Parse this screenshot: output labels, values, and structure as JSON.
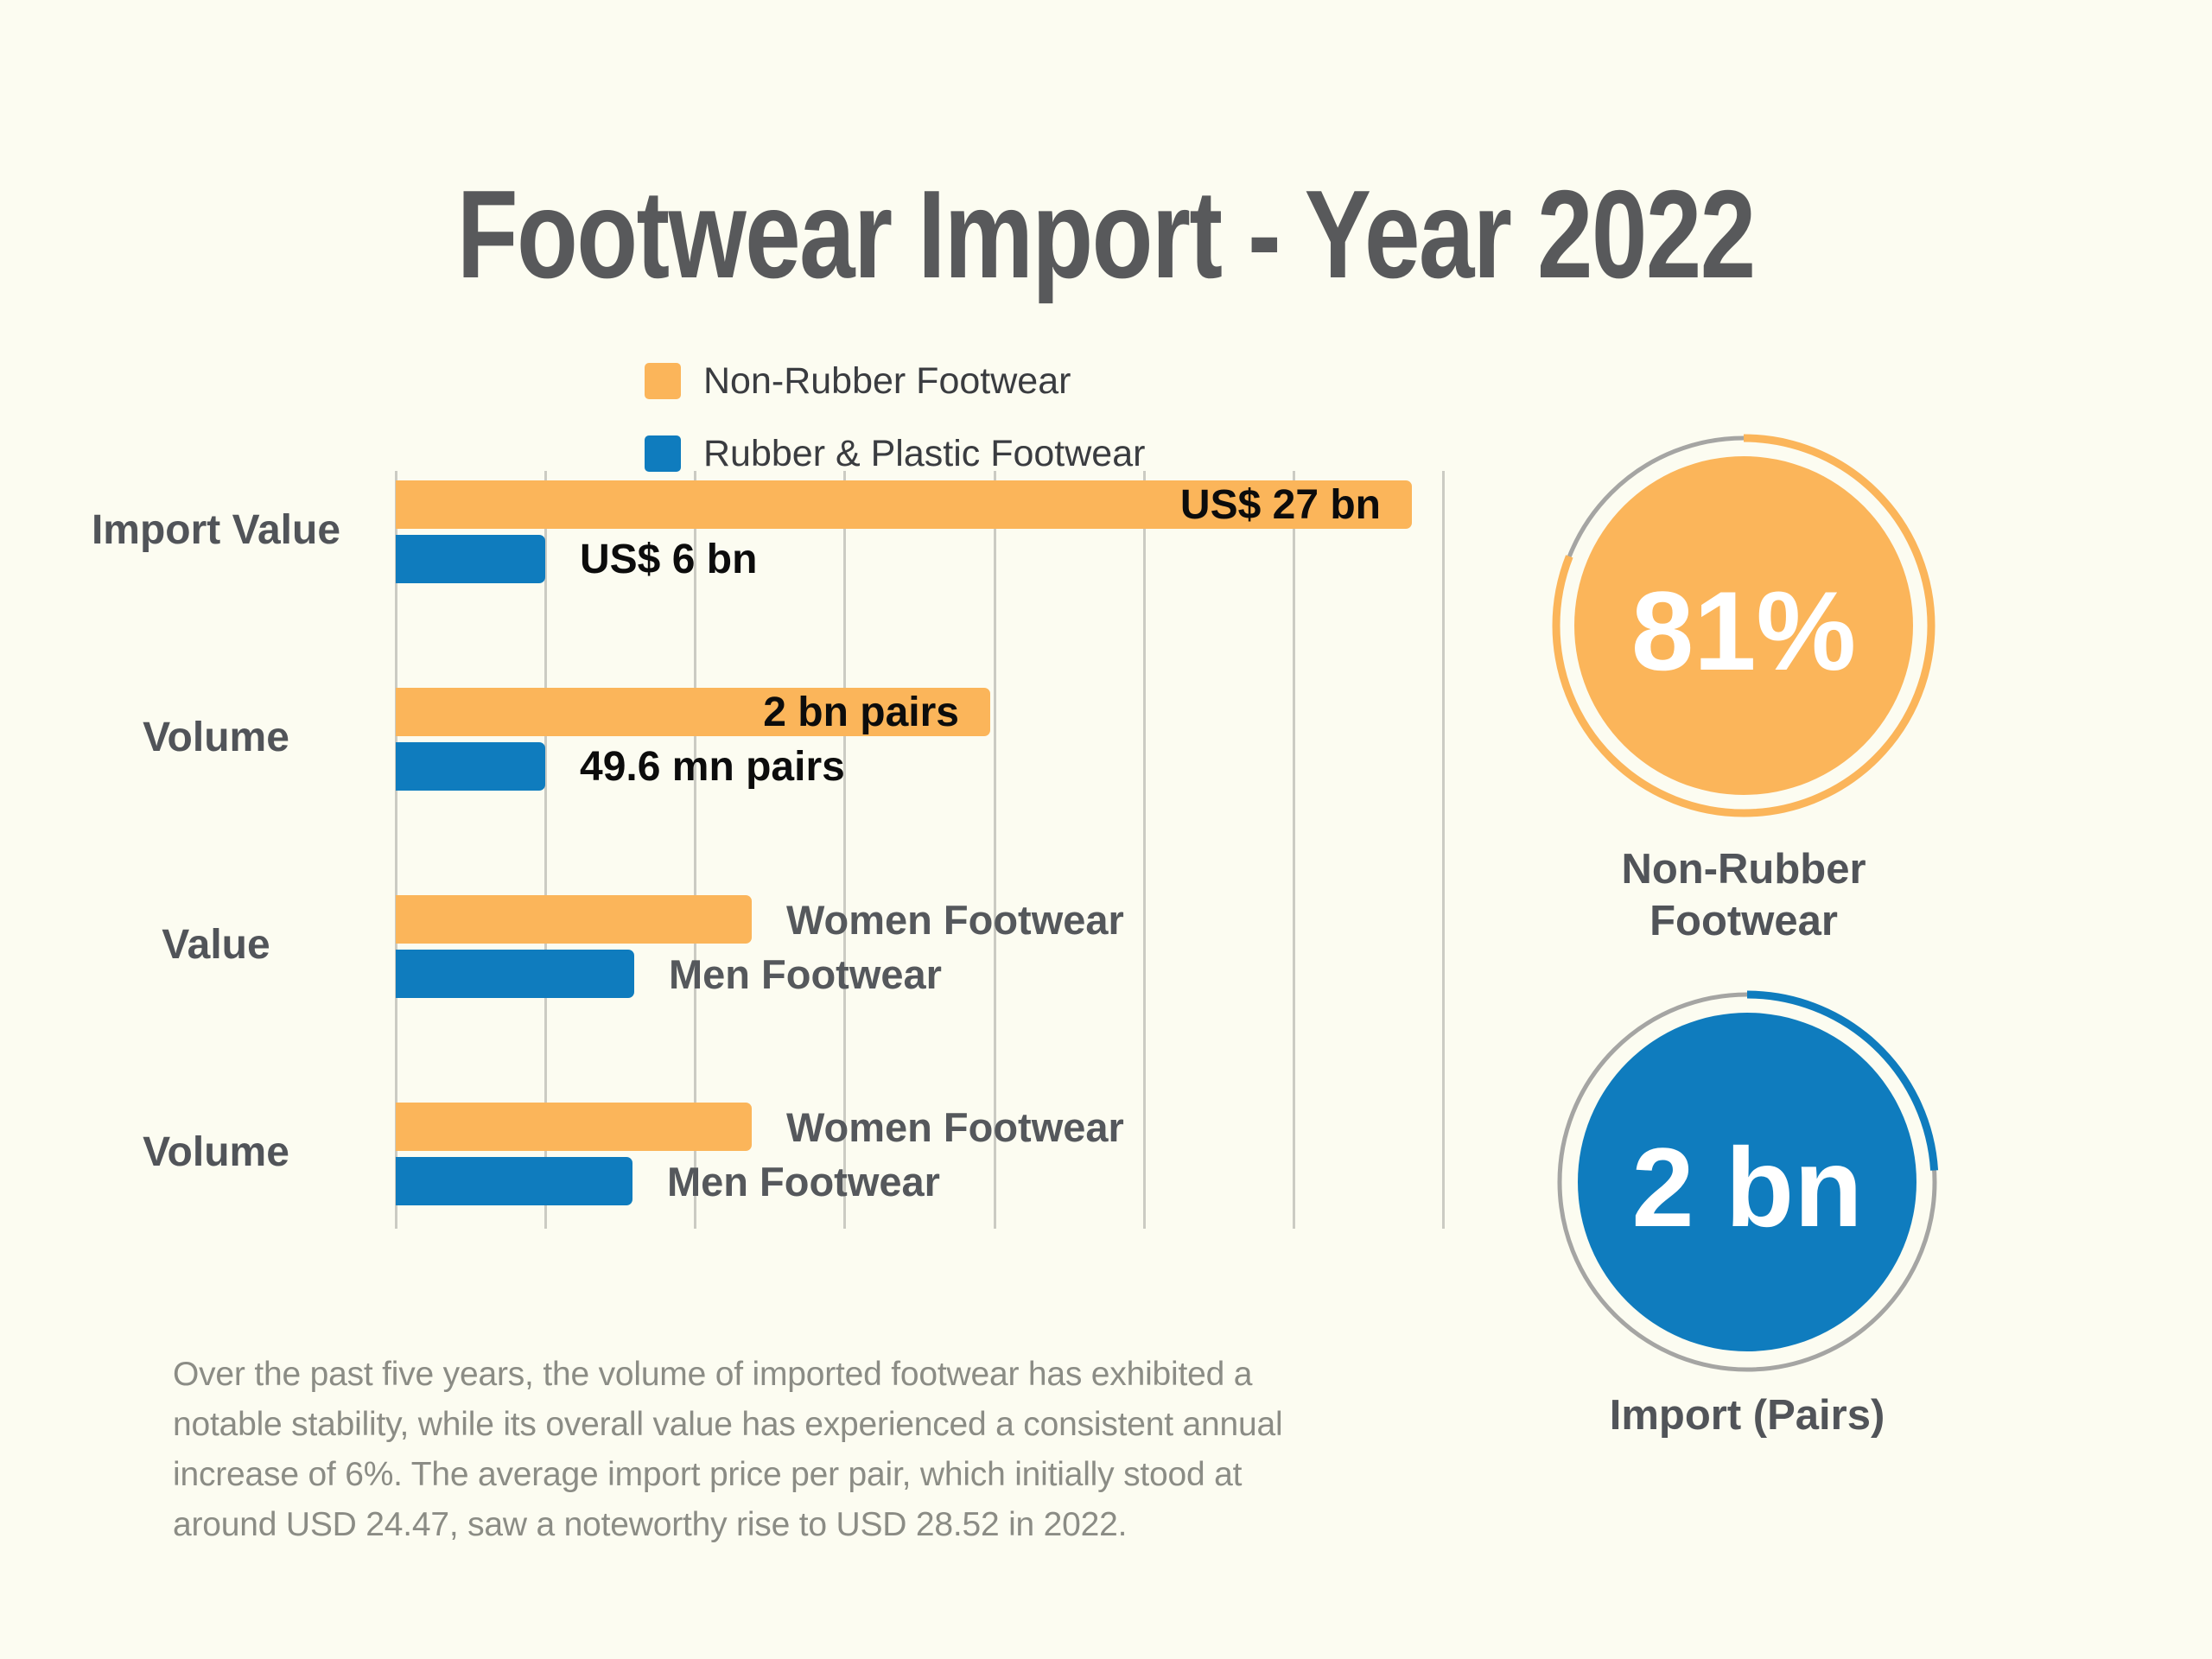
{
  "title": "Footwear Import - Year 2022",
  "colors": {
    "background": "#FCFCF1",
    "orange": "#FBB55A",
    "blue": "#0F7CBE",
    "title_gray": "#58595B",
    "category_gray": "#515459",
    "legend_text": "#3A3C40",
    "value_black": "#0C0C0C",
    "bar_label_gray": "#55585C",
    "gridline": "#CBCBC3",
    "ring_gray": "#A5A5A3",
    "paragraph_gray": "#8B8C85",
    "white": "#FFFFFF"
  },
  "legend": {
    "items": [
      {
        "label": "Non-Rubber Footwear",
        "color_key": "orange"
      },
      {
        "label": "Rubber & Plastic Footwear",
        "color_key": "blue"
      }
    ]
  },
  "chart_data": {
    "type": "bar",
    "orientation": "horizontal",
    "grid": "on",
    "gridline_count": 8,
    "series_legend": [
      "Non-Rubber Footwear",
      "Rubber & Plastic Footwear"
    ],
    "groups": [
      {
        "category": "Import Value",
        "bars": [
          {
            "series": "Non-Rubber Footwear",
            "color_key": "orange",
            "value": 27,
            "unit": "US$ bn",
            "value_label": "US$ 27 bn",
            "width_pct": 97.0,
            "label_pos": "inside",
            "label_style": "black"
          },
          {
            "series": "Rubber & Plastic Footwear",
            "color_key": "blue",
            "value": 6,
            "unit": "US$ bn",
            "value_label": "US$ 6 bn",
            "width_pct": 14.3,
            "label_pos": "outside",
            "label_style": "black"
          }
        ]
      },
      {
        "category": "Volume",
        "bars": [
          {
            "series": "Non-Rubber Footwear",
            "color_key": "orange",
            "value": 2,
            "unit": "bn pairs",
            "value_label": "2 bn pairs",
            "width_pct": 56.8,
            "label_pos": "inside",
            "label_style": "black"
          },
          {
            "series": "Rubber & Plastic Footwear",
            "color_key": "blue",
            "value": 49.6,
            "unit": "mn pairs",
            "value_label": "49.6 mn pairs",
            "width_pct": 14.3,
            "label_pos": "outside",
            "label_style": "black"
          }
        ]
      },
      {
        "category": "Value",
        "bars": [
          {
            "series": "Non-Rubber Footwear",
            "color_key": "orange",
            "value_label": "Women Footwear",
            "width_pct": 34.0,
            "label_pos": "outside",
            "label_style": "gray"
          },
          {
            "series": "Rubber & Plastic Footwear",
            "color_key": "blue",
            "value_label": "Men Footwear",
            "width_pct": 22.8,
            "label_pos": "outside",
            "label_style": "gray"
          }
        ]
      },
      {
        "category": "Volume",
        "bars": [
          {
            "series": "Non-Rubber Footwear",
            "color_key": "orange",
            "value_label": "Women Footwear",
            "width_pct": 34.0,
            "label_pos": "outside",
            "label_style": "gray"
          },
          {
            "series": "Rubber & Plastic Footwear",
            "color_key": "blue",
            "value_label": "Men Footwear",
            "width_pct": 22.6,
            "label_pos": "outside",
            "label_style": "gray"
          }
        ]
      }
    ]
  },
  "stats": [
    {
      "value_text": "81%",
      "ring_pct": 81,
      "color_key": "orange",
      "label_lines": [
        "Non-Rubber",
        "Footwear"
      ]
    },
    {
      "value_text": "2 bn",
      "ring_pct": 24,
      "color_key": "blue",
      "label_lines": [
        "Import (Pairs)"
      ]
    }
  ],
  "paragraph_lines": [
    "Over the past five years, the volume of imported footwear has exhibited a",
    "notable stability, while its overall value has experienced a consistent annual",
    "increase of 6%. The average import price per pair, which initially stood at",
    "around USD 24.47, saw a noteworthy rise to USD 28.52 in 2022."
  ]
}
